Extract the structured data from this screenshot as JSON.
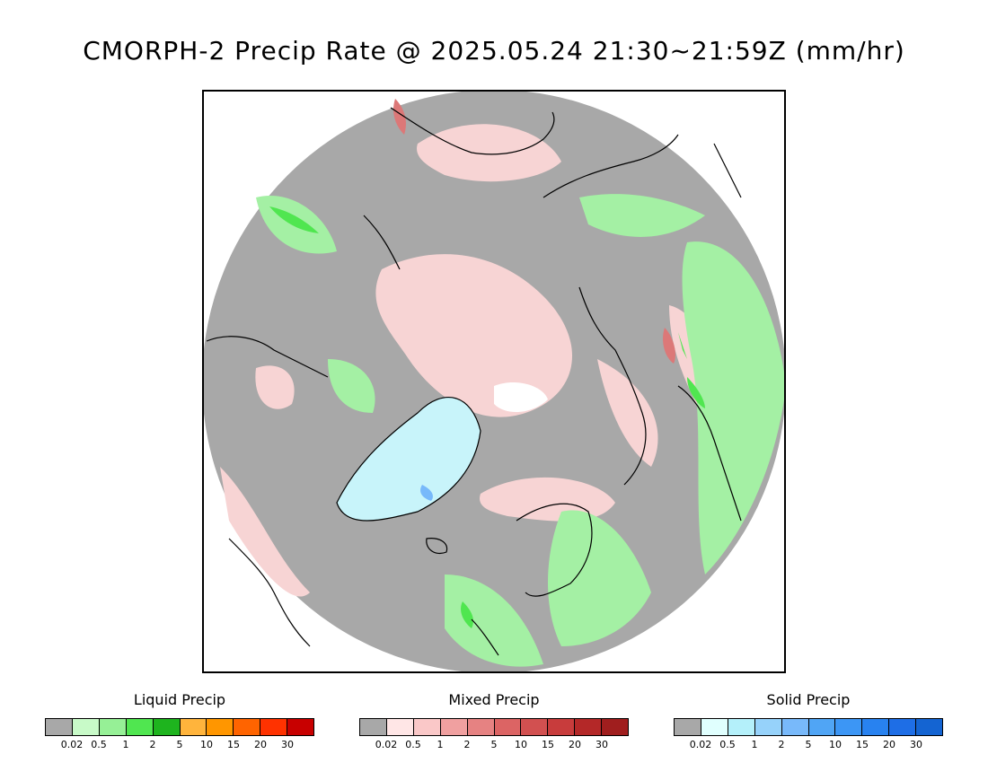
{
  "title": "CMORPH-2 Precip Rate @ 2025.05.24 21:30~21:59Z (mm/hr)",
  "legends": [
    {
      "title": "Liquid Precip",
      "colors": [
        "#a8a8a8",
        "#c8fac8",
        "#96f096",
        "#50e650",
        "#1eb41e",
        "#ffb43c",
        "#ff9600",
        "#ff6400",
        "#ff3200",
        "#c80000"
      ]
    },
    {
      "title": "Mixed Precip",
      "colors": [
        "#a8a8a8",
        "#ffe6e6",
        "#fac8c8",
        "#f0a0a0",
        "#e68282",
        "#dc6464",
        "#d25050",
        "#c83c3c",
        "#b42828",
        "#a01e1e"
      ]
    },
    {
      "title": "Solid Precip",
      "colors": [
        "#a8a8a8",
        "#e0fffe",
        "#b4f0fa",
        "#96d2fa",
        "#78b9fa",
        "#50a5f5",
        "#3c96f5",
        "#2882f0",
        "#1e6ee6",
        "#1464d2"
      ]
    }
  ],
  "tick_labels": [
    "0.02",
    "0.5",
    "1",
    "2",
    "5",
    "10",
    "15",
    "20",
    "30"
  ],
  "map": {
    "background_color": "#a8a8a8",
    "ice_color": "#ffffff",
    "coast_color": "#000000"
  }
}
